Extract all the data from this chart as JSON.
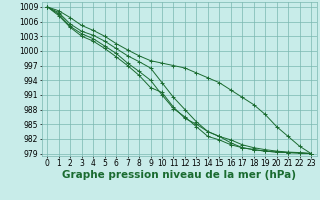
{
  "background_color": "#c8ece9",
  "grid_color": "#7ab8b0",
  "line_color": "#1a6b30",
  "marker": "+",
  "xlabel": "Graphe pression niveau de la mer (hPa)",
  "xlabel_fontsize": 7.5,
  "tick_fontsize": 5.5,
  "ylim": [
    978.5,
    1010.0
  ],
  "xlim": [
    -0.5,
    23.5
  ],
  "yticks": [
    979,
    982,
    985,
    988,
    991,
    994,
    997,
    1000,
    1003,
    1006,
    1009
  ],
  "xticks": [
    0,
    1,
    2,
    3,
    4,
    5,
    6,
    7,
    8,
    9,
    10,
    11,
    12,
    13,
    14,
    15,
    16,
    17,
    18,
    19,
    20,
    21,
    22,
    23
  ],
  "series": [
    [
      1009.0,
      1008.2,
      1006.8,
      1005.2,
      1004.2,
      1003.0,
      1001.5,
      1000.2,
      999.0,
      998.0,
      997.5,
      997.0,
      996.5,
      995.5,
      994.5,
      993.5,
      992.0,
      990.5,
      989.0,
      987.0,
      984.5,
      982.5,
      980.5,
      979.0
    ],
    [
      1009.0,
      1007.8,
      1005.5,
      1004.0,
      1003.2,
      1002.0,
      1000.5,
      999.0,
      997.8,
      996.5,
      993.5,
      990.5,
      988.0,
      985.5,
      983.5,
      982.5,
      981.2,
      980.2,
      979.8,
      979.5,
      979.3,
      979.2,
      979.1,
      979.0
    ],
    [
      1009.0,
      1007.5,
      1005.0,
      1003.5,
      1002.5,
      1001.0,
      999.5,
      997.5,
      995.8,
      994.0,
      991.0,
      988.2,
      986.5,
      984.5,
      982.5,
      981.8,
      980.8,
      980.2,
      979.8,
      979.5,
      979.3,
      979.2,
      979.1,
      979.0
    ],
    [
      1009.0,
      1007.2,
      1004.8,
      1003.0,
      1002.0,
      1000.5,
      998.8,
      997.0,
      995.0,
      992.5,
      991.5,
      988.5,
      986.2,
      985.0,
      983.5,
      982.5,
      981.8,
      980.8,
      980.2,
      979.8,
      979.5,
      979.3,
      979.2,
      979.0
    ]
  ]
}
